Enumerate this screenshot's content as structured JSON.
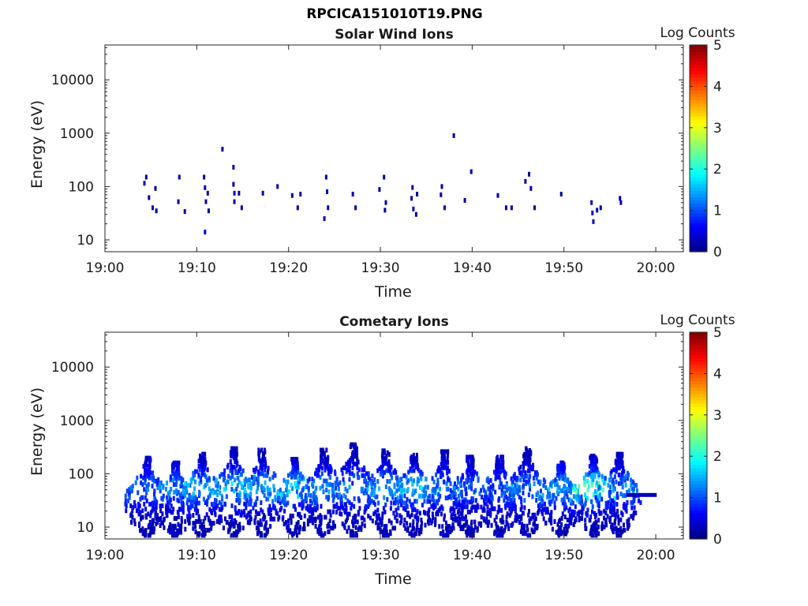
{
  "figure": {
    "title": "RPCICA151010T19.PNG"
  },
  "chart_data": [
    {
      "type": "heatmap",
      "title": "Solar Wind Ions",
      "xlabel": "Time",
      "ylabel": "Energy (eV)",
      "x_ticks": [
        "19:00",
        "19:10",
        "19:20",
        "19:30",
        "19:40",
        "19:50",
        "20:00"
      ],
      "xlim": [
        "19:00",
        "20:03"
      ],
      "y_scale": "log",
      "y_ticks": [
        "10",
        "100",
        "1000",
        "10000"
      ],
      "ylim": [
        6,
        45000
      ],
      "grid": false,
      "colorbar": {
        "label": "Log Counts",
        "ticks": [
          "0",
          "1",
          "2",
          "3",
          "4",
          "5"
        ],
        "range": [
          0,
          5
        ],
        "colormap": "jet"
      },
      "points": [
        {
          "t": "19:04.5",
          "e": 150,
          "v": 0.2
        },
        {
          "t": "19:04.3",
          "e": 115,
          "v": 0.3
        },
        {
          "t": "19:04.8",
          "e": 62,
          "v": 0.2
        },
        {
          "t": "19:05.2",
          "e": 40,
          "v": 0.2
        },
        {
          "t": "19:05.6",
          "e": 35,
          "v": 0.2
        },
        {
          "t": "19:05.5",
          "e": 92,
          "v": 0.2
        },
        {
          "t": "19:08.1",
          "e": 150,
          "v": 0.2
        },
        {
          "t": "19:08.0",
          "e": 52,
          "v": 0.2
        },
        {
          "t": "19:08.7",
          "e": 34,
          "v": 0.2
        },
        {
          "t": "19:10.8",
          "e": 150,
          "v": 0.2
        },
        {
          "t": "19:10.9",
          "e": 95,
          "v": 0.2
        },
        {
          "t": "19:11.2",
          "e": 75,
          "v": 0.2
        },
        {
          "t": "19:11.0",
          "e": 52,
          "v": 0.2
        },
        {
          "t": "19:11.3",
          "e": 35,
          "v": 0.2
        },
        {
          "t": "19:10.9",
          "e": 14,
          "v": 0.4
        },
        {
          "t": "19:12.8",
          "e": 500,
          "v": 0.2
        },
        {
          "t": "19:14.0",
          "e": 230,
          "v": 0.2
        },
        {
          "t": "19:14.0",
          "e": 110,
          "v": 0.2
        },
        {
          "t": "19:14.1",
          "e": 75,
          "v": 0.3
        },
        {
          "t": "19:14.1",
          "e": 52,
          "v": 0.3
        },
        {
          "t": "19:14.6",
          "e": 75,
          "v": 0.2
        },
        {
          "t": "19:14.9",
          "e": 40,
          "v": 0.2
        },
        {
          "t": "19:17.2",
          "e": 75,
          "v": 0.2
        },
        {
          "t": "19:18.8",
          "e": 100,
          "v": 0.2
        },
        {
          "t": "19:20.4",
          "e": 68,
          "v": 0.2
        },
        {
          "t": "19:21.0",
          "e": 40,
          "v": 0.2
        },
        {
          "t": "19:21.3",
          "e": 72,
          "v": 0.2
        },
        {
          "t": "19:24.1",
          "e": 150,
          "v": 0.2
        },
        {
          "t": "19:24.2",
          "e": 80,
          "v": 0.2
        },
        {
          "t": "19:24.3",
          "e": 40,
          "v": 0.3
        },
        {
          "t": "19:23.9",
          "e": 25,
          "v": 0.2
        },
        {
          "t": "19:27.0",
          "e": 72,
          "v": 0.2
        },
        {
          "t": "19:27.3",
          "e": 40,
          "v": 0.2
        },
        {
          "t": "19:30.4",
          "e": 150,
          "v": 0.2
        },
        {
          "t": "19:29.9",
          "e": 88,
          "v": 0.2
        },
        {
          "t": "19:30.6",
          "e": 50,
          "v": 0.2
        },
        {
          "t": "19:30.5",
          "e": 36,
          "v": 0.2
        },
        {
          "t": "19:33.5",
          "e": 96,
          "v": 0.2
        },
        {
          "t": "19:33.4",
          "e": 60,
          "v": 0.2
        },
        {
          "t": "19:33.6",
          "e": 38,
          "v": 0.3
        },
        {
          "t": "19:34.0",
          "e": 72,
          "v": 0.2
        },
        {
          "t": "19:33.9",
          "e": 30,
          "v": 0.2
        },
        {
          "t": "19:36.7",
          "e": 100,
          "v": 0.2
        },
        {
          "t": "19:36.6",
          "e": 70,
          "v": 0.2
        },
        {
          "t": "19:37.0",
          "e": 40,
          "v": 0.3
        },
        {
          "t": "19:38.0",
          "e": 900,
          "v": 0.2
        },
        {
          "t": "19:39.9",
          "e": 190,
          "v": 0.2
        },
        {
          "t": "19:39.2",
          "e": 55,
          "v": 0.2
        },
        {
          "t": "19:42.8",
          "e": 68,
          "v": 0.2
        },
        {
          "t": "19:43.7",
          "e": 40,
          "v": 0.2
        },
        {
          "t": "19:44.3",
          "e": 40,
          "v": 0.2
        },
        {
          "t": "19:45.8",
          "e": 125,
          "v": 0.2
        },
        {
          "t": "19:46.2",
          "e": 170,
          "v": 0.2
        },
        {
          "t": "19:46.4",
          "e": 92,
          "v": 0.2
        },
        {
          "t": "19:46.8",
          "e": 40,
          "v": 0.2
        },
        {
          "t": "19:49.7",
          "e": 72,
          "v": 0.2
        },
        {
          "t": "19:53.0",
          "e": 50,
          "v": 0.4
        },
        {
          "t": "19:53.1",
          "e": 32,
          "v": 0.5
        },
        {
          "t": "19:53.2",
          "e": 22,
          "v": 0.3
        },
        {
          "t": "19:53.6",
          "e": 36,
          "v": 0.3
        },
        {
          "t": "19:54.0",
          "e": 40,
          "v": 0.2
        },
        {
          "t": "19:56.1",
          "e": 60,
          "v": 0.3
        },
        {
          "t": "19:56.2",
          "e": 50,
          "v": 0.3
        }
      ]
    },
    {
      "type": "heatmap",
      "title": "Cometary Ions",
      "xlabel": "Time",
      "ylabel": "Energy (eV)",
      "x_ticks": [
        "19:00",
        "19:10",
        "19:20",
        "19:30",
        "19:40",
        "19:50",
        "20:00"
      ],
      "xlim": [
        "19:00",
        "20:03"
      ],
      "y_scale": "log",
      "y_ticks": [
        "10",
        "100",
        "1000",
        "10000"
      ],
      "ylim": [
        6,
        45000
      ],
      "grid": false,
      "colorbar": {
        "label": "Log Counts",
        "ticks": [
          "0",
          "1",
          "2",
          "3",
          "4",
          "5"
        ],
        "range": [
          0,
          5
        ],
        "colormap": "jet"
      },
      "bursts": [
        {
          "t": "19:04.6",
          "e_min": 7,
          "e_max": 210,
          "peak": 0.9
        },
        {
          "t": "19:07.7",
          "e_min": 7,
          "e_max": 170,
          "peak": 1.0
        },
        {
          "t": "19:10.6",
          "e_min": 7,
          "e_max": 250,
          "peak": 1.2
        },
        {
          "t": "19:14.0",
          "e_min": 7,
          "e_max": 320,
          "peak": 1.3
        },
        {
          "t": "19:17.1",
          "e_min": 7,
          "e_max": 300,
          "peak": 1.2
        },
        {
          "t": "19:20.7",
          "e_min": 7,
          "e_max": 200,
          "peak": 1.4
        },
        {
          "t": "19:23.9",
          "e_min": 7,
          "e_max": 300,
          "peak": 1.0
        },
        {
          "t": "19:27.1",
          "e_min": 7,
          "e_max": 380,
          "peak": 1.0
        },
        {
          "t": "19:30.6",
          "e_min": 7,
          "e_max": 290,
          "peak": 1.2
        },
        {
          "t": "19:33.7",
          "e_min": 7,
          "e_max": 240,
          "peak": 1.3
        },
        {
          "t": "19:37.0",
          "e_min": 7,
          "e_max": 280,
          "peak": 1.0
        },
        {
          "t": "19:39.8",
          "e_min": 7,
          "e_max": 220,
          "peak": 0.8
        },
        {
          "t": "19:43.0",
          "e_min": 7,
          "e_max": 220,
          "peak": 0.8
        },
        {
          "t": "19:46.0",
          "e_min": 7,
          "e_max": 320,
          "peak": 1.0
        },
        {
          "t": "19:49.7",
          "e_min": 7,
          "e_max": 170,
          "peak": 1.2
        },
        {
          "t": "19:53.2",
          "e_min": 7,
          "e_max": 230,
          "peak": 1.9
        },
        {
          "t": "19:56.0",
          "e_min": 7,
          "e_max": 250,
          "peak": 1.0
        }
      ],
      "band": {
        "t_start": "19:56.8",
        "t_end": "20:00.1",
        "e": 40,
        "v": 0.3
      }
    }
  ]
}
